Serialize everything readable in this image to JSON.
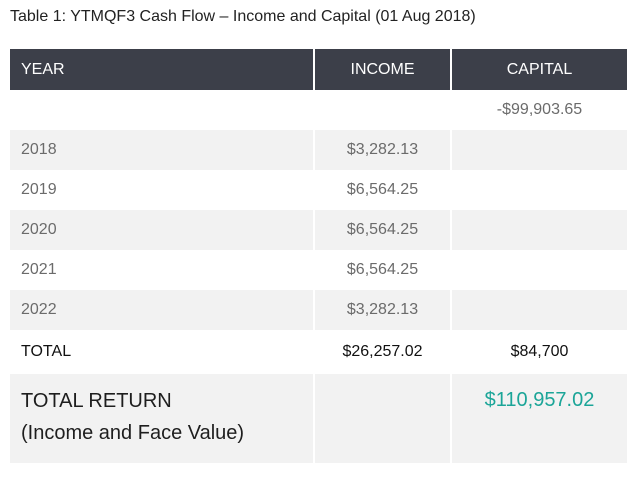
{
  "title": "Table 1: YTMQF3 Cash Flow – Income and Capital (01 Aug 2018)",
  "headers": {
    "year": "YEAR",
    "income": "INCOME",
    "capital": "CAPITAL"
  },
  "initial_capital": "-$99,903.65",
  "rows": [
    {
      "year": "2018",
      "income": "$3,282.13"
    },
    {
      "year": "2019",
      "income": "$6,564.25"
    },
    {
      "year": "2020",
      "income": "$6,564.25"
    },
    {
      "year": "2021",
      "income": "$6,564.25"
    },
    {
      "year": "2022",
      "income": "$3,282.13"
    }
  ],
  "total": {
    "label": "TOTAL",
    "income": "$26,257.02",
    "capital": "$84,700"
  },
  "total_return": {
    "label": "TOTAL RETURN",
    "sublabel": "(Income and Face Value)",
    "value": "$110,957.02"
  },
  "colors": {
    "header_bg": "#3c3f49",
    "negative": "#d9433a",
    "return_value": "#1ba598",
    "row_alt": "#f2f2f2"
  }
}
